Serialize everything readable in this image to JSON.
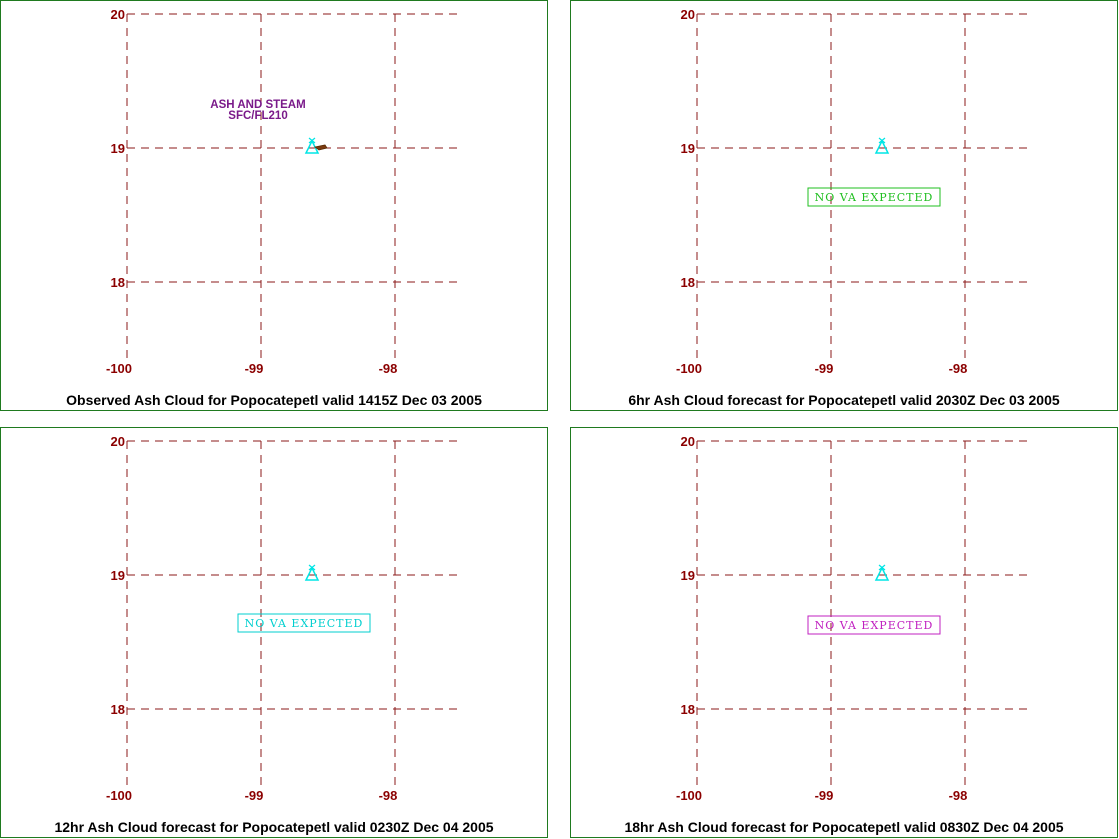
{
  "map": {
    "lat_ticks": [
      "20",
      "19",
      "18"
    ],
    "lon_ticks": [
      "-100",
      "-99",
      "-98"
    ],
    "grid_color": "#8b1a1a",
    "volcano_color": "#00e5e5"
  },
  "panels": [
    {
      "caption": "Observed Ash Cloud for Popocatepetl valid 1415Z Dec 03 2005",
      "annotation": {
        "line1": "ASH AND STEAM",
        "line2": "SFC/FL210",
        "color": "#7a1a8a"
      },
      "no_va_label": null
    },
    {
      "caption": "6hr Ash Cloud forecast for Popocatepetl valid 2030Z Dec 03 2005",
      "annotation": null,
      "no_va_label": {
        "text": "NO VA EXPECTED",
        "color": "#1fbf1f"
      }
    },
    {
      "caption": "12hr Ash Cloud forecast for Popocatepetl valid 0230Z Dec 04 2005",
      "annotation": null,
      "no_va_label": {
        "text": "NO VA EXPECTED",
        "color": "#00cfcf"
      }
    },
    {
      "caption": "18hr Ash Cloud forecast for Popocatepetl valid 0830Z Dec 04 2005",
      "annotation": null,
      "no_va_label": {
        "text": "NO VA EXPECTED",
        "color": "#c020c0"
      }
    }
  ]
}
